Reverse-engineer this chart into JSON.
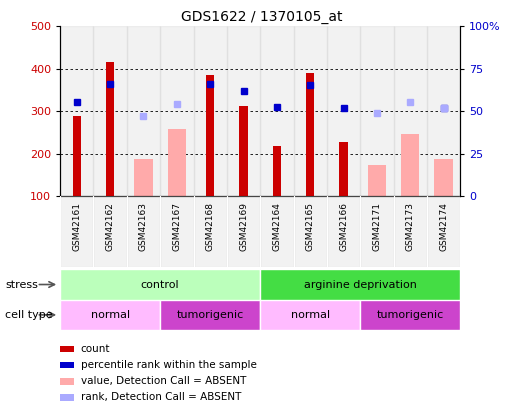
{
  "title": "GDS1622 / 1370105_at",
  "samples": [
    "GSM42161",
    "GSM42162",
    "GSM42163",
    "GSM42167",
    "GSM42168",
    "GSM42169",
    "GSM42164",
    "GSM42165",
    "GSM42166",
    "GSM42171",
    "GSM42173",
    "GSM42174"
  ],
  "count_values": [
    290,
    415,
    null,
    null,
    385,
    312,
    218,
    390,
    228,
    null,
    null,
    null
  ],
  "absent_value_values": [
    null,
    null,
    188,
    258,
    null,
    null,
    null,
    null,
    null,
    175,
    247,
    188
  ],
  "percentile_rank_values": [
    322,
    365,
    null,
    null,
    365,
    348,
    310,
    362,
    308,
    null,
    null,
    308
  ],
  "absent_rank_values": [
    null,
    null,
    290,
    318,
    null,
    null,
    null,
    null,
    null,
    297,
    323,
    308
  ],
  "ylim": [
    100,
    500
  ],
  "y2lim": [
    0,
    100
  ],
  "yticks": [
    100,
    200,
    300,
    400,
    500
  ],
  "y2ticks": [
    0,
    25,
    50,
    75,
    100
  ],
  "count_color": "#cc0000",
  "absent_value_color": "#ffaaaa",
  "percentile_rank_color": "#0000cc",
  "absent_rank_color": "#aaaaff",
  "stress_control_color": "#bbffbb",
  "stress_arginine_color": "#44dd44",
  "cell_normal_color": "#ffbbff",
  "cell_tumorigenic_color": "#cc44cc",
  "label_stress": "stress",
  "label_cell_type": "cell type",
  "stress_groups": [
    {
      "label": "control",
      "start": 0,
      "end": 5
    },
    {
      "label": "arginine deprivation",
      "start": 6,
      "end": 11
    }
  ],
  "cell_groups": [
    {
      "label": "normal",
      "start": 0,
      "end": 2
    },
    {
      "label": "tumorigenic",
      "start": 3,
      "end": 5
    },
    {
      "label": "normal",
      "start": 6,
      "end": 8
    },
    {
      "label": "tumorigenic",
      "start": 9,
      "end": 11
    }
  ],
  "legend_items": [
    {
      "label": "count",
      "color": "#cc0000"
    },
    {
      "label": "percentile rank within the sample",
      "color": "#0000cc"
    },
    {
      "label": "value, Detection Call = ABSENT",
      "color": "#ffaaaa"
    },
    {
      "label": "rank, Detection Call = ABSENT",
      "color": "#aaaaff"
    }
  ]
}
